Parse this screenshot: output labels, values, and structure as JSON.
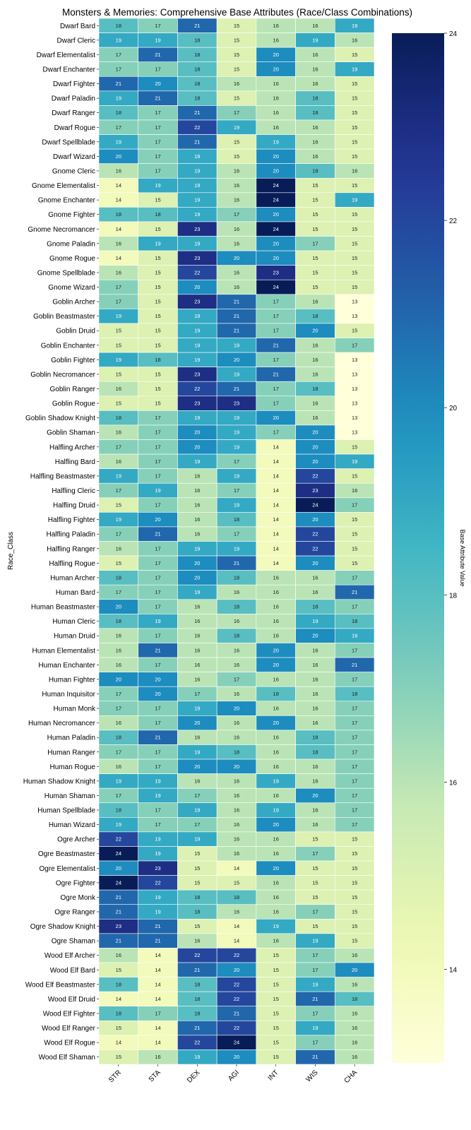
{
  "chart_data": {
    "type": "heatmap",
    "title": "Monsters & Memories: Comprehensive Base Attributes (Race/Class Combinations)",
    "xlabel": "",
    "ylabel": "Race_Class",
    "colorbar_label": "Base Attribute Value",
    "colormap": "YlGnBu",
    "vmin": 13,
    "vmax": 24,
    "colorbar_ticks": [
      14,
      16,
      18,
      20,
      22,
      24
    ],
    "columns": [
      "STR",
      "STA",
      "DEX",
      "AGI",
      "INT",
      "WIS",
      "CHA"
    ],
    "rows": [
      "Dwarf Bard",
      "Dwarf Cleric",
      "Dwarf Elementalist",
      "Dwarf Enchanter",
      "Dwarf Fighter",
      "Dwarf Paladin",
      "Dwarf Ranger",
      "Dwarf Rogue",
      "Dwarf Spellblade",
      "Dwarf Wizard",
      "Gnome Cleric",
      "Gnome Elementalist",
      "Gnome Enchanter",
      "Gnome Fighter",
      "Gnome Necromancer",
      "Gnome Paladin",
      "Gnome Rogue",
      "Gnome Spellblade",
      "Gnome Wizard",
      "Goblin Archer",
      "Goblin Beastmaster",
      "Goblin Druid",
      "Goblin Enchanter",
      "Goblin Fighter",
      "Goblin Necromancer",
      "Goblin Ranger",
      "Goblin Rogue",
      "Goblin Shadow Knight",
      "Goblin Shaman",
      "Halfling Archer",
      "Halfling Bard",
      "Halfling Beastmaster",
      "Halfling Cleric",
      "Halfling Druid",
      "Halfling Fighter",
      "Halfling Paladin",
      "Halfling Ranger",
      "Halfling Rogue",
      "Human Archer",
      "Human Bard",
      "Human Beastmaster",
      "Human Cleric",
      "Human Druid",
      "Human Elementalist",
      "Human Enchanter",
      "Human Fighter",
      "Human Inquisitor",
      "Human Monk",
      "Human Necromancer",
      "Human Paladin",
      "Human Ranger",
      "Human Rogue",
      "Human Shadow Knight",
      "Human Shaman",
      "Human Spellblade",
      "Human Wizard",
      "Ogre Archer",
      "Ogre Beastmaster",
      "Ogre Elementalist",
      "Ogre Fighter",
      "Ogre Monk",
      "Ogre Ranger",
      "Ogre Shadow Knight",
      "Ogre Shaman",
      "Wood Elf Archer",
      "Wood Elf Bard",
      "Wood Elf Beastmaster",
      "Wood Elf Druid",
      "Wood Elf Fighter",
      "Wood Elf Ranger",
      "Wood Elf Rogue",
      "Wood Elf Shaman"
    ],
    "values": [
      [
        18,
        17,
        21,
        15,
        16,
        16,
        19
      ],
      [
        19,
        19,
        18,
        15,
        16,
        19,
        16
      ],
      [
        17,
        21,
        18,
        15,
        20,
        16,
        15
      ],
      [
        17,
        17,
        18,
        15,
        20,
        16,
        19
      ],
      [
        21,
        20,
        18,
        16,
        16,
        16,
        15
      ],
      [
        19,
        21,
        18,
        15,
        16,
        18,
        15
      ],
      [
        18,
        17,
        21,
        17,
        16,
        18,
        15
      ],
      [
        17,
        17,
        22,
        19,
        16,
        16,
        15
      ],
      [
        19,
        17,
        21,
        15,
        19,
        16,
        15
      ],
      [
        20,
        17,
        19,
        15,
        20,
        16,
        15
      ],
      [
        16,
        17,
        19,
        16,
        20,
        18,
        16
      ],
      [
        14,
        19,
        19,
        16,
        24,
        15,
        15
      ],
      [
        14,
        15,
        19,
        16,
        24,
        15,
        19
      ],
      [
        18,
        18,
        19,
        17,
        20,
        15,
        15
      ],
      [
        14,
        15,
        23,
        16,
        24,
        15,
        15
      ],
      [
        16,
        19,
        19,
        16,
        20,
        17,
        15
      ],
      [
        14,
        15,
        23,
        20,
        20,
        15,
        15
      ],
      [
        16,
        15,
        22,
        16,
        23,
        15,
        15
      ],
      [
        17,
        15,
        20,
        16,
        24,
        15,
        15
      ],
      [
        17,
        15,
        23,
        21,
        17,
        16,
        13
      ],
      [
        19,
        15,
        19,
        21,
        17,
        18,
        13
      ],
      [
        15,
        15,
        19,
        21,
        17,
        20,
        15
      ],
      [
        15,
        15,
        19,
        19,
        21,
        16,
        17
      ],
      [
        19,
        18,
        19,
        20,
        17,
        16,
        13
      ],
      [
        15,
        15,
        23,
        19,
        21,
        16,
        13
      ],
      [
        16,
        15,
        22,
        21,
        17,
        18,
        13
      ],
      [
        15,
        15,
        23,
        23,
        17,
        16,
        13
      ],
      [
        18,
        17,
        19,
        19,
        20,
        16,
        13
      ],
      [
        16,
        17,
        20,
        19,
        17,
        20,
        13
      ],
      [
        17,
        17,
        20,
        19,
        14,
        20,
        15
      ],
      [
        16,
        17,
        19,
        17,
        14,
        20,
        19
      ],
      [
        19,
        17,
        16,
        19,
        14,
        22,
        15
      ],
      [
        17,
        19,
        16,
        17,
        14,
        23,
        16
      ],
      [
        15,
        17,
        16,
        19,
        14,
        24,
        17
      ],
      [
        19,
        20,
        16,
        18,
        14,
        20,
        15
      ],
      [
        17,
        21,
        16,
        17,
        14,
        22,
        15
      ],
      [
        16,
        17,
        19,
        19,
        14,
        22,
        15
      ],
      [
        15,
        17,
        20,
        21,
        14,
        20,
        15
      ],
      [
        18,
        17,
        20,
        18,
        16,
        16,
        17
      ],
      [
        17,
        17,
        19,
        16,
        16,
        16,
        21
      ],
      [
        20,
        17,
        16,
        18,
        16,
        18,
        17
      ],
      [
        18,
        19,
        16,
        16,
        16,
        19,
        18
      ],
      [
        16,
        17,
        16,
        18,
        16,
        20,
        19
      ],
      [
        16,
        21,
        16,
        16,
        20,
        16,
        17
      ],
      [
        16,
        17,
        16,
        16,
        20,
        16,
        21
      ],
      [
        20,
        20,
        16,
        17,
        16,
        16,
        17
      ],
      [
        17,
        20,
        17,
        16,
        18,
        16,
        18
      ],
      [
        17,
        17,
        19,
        20,
        16,
        16,
        17
      ],
      [
        16,
        17,
        20,
        16,
        20,
        16,
        17
      ],
      [
        18,
        21,
        16,
        16,
        16,
        18,
        17
      ],
      [
        17,
        17,
        19,
        18,
        16,
        18,
        17
      ],
      [
        16,
        17,
        20,
        20,
        16,
        16,
        17
      ],
      [
        19,
        19,
        16,
        16,
        19,
        16,
        17
      ],
      [
        17,
        19,
        17,
        16,
        16,
        20,
        17
      ],
      [
        18,
        17,
        19,
        16,
        19,
        16,
        17
      ],
      [
        19,
        17,
        17,
        16,
        20,
        16,
        17
      ],
      [
        22,
        19,
        19,
        16,
        16,
        15,
        15
      ],
      [
        24,
        19,
        15,
        16,
        16,
        17,
        15
      ],
      [
        20,
        23,
        15,
        14,
        20,
        15,
        15
      ],
      [
        24,
        22,
        15,
        15,
        16,
        15,
        15
      ],
      [
        21,
        19,
        18,
        18,
        16,
        15,
        15
      ],
      [
        21,
        19,
        18,
        16,
        16,
        17,
        15
      ],
      [
        23,
        21,
        15,
        14,
        19,
        15,
        15
      ],
      [
        21,
        21,
        16,
        14,
        16,
        19,
        15
      ],
      [
        16,
        14,
        22,
        22,
        15,
        17,
        16
      ],
      [
        15,
        14,
        21,
        20,
        15,
        17,
        20
      ],
      [
        18,
        14,
        18,
        22,
        15,
        19,
        16
      ],
      [
        14,
        14,
        18,
        22,
        15,
        21,
        18
      ],
      [
        18,
        17,
        18,
        21,
        15,
        17,
        16
      ],
      [
        15,
        14,
        21,
        22,
        15,
        19,
        16
      ],
      [
        14,
        14,
        22,
        24,
        15,
        17,
        16
      ],
      [
        15,
        16,
        19,
        20,
        15,
        21,
        16
      ]
    ]
  }
}
